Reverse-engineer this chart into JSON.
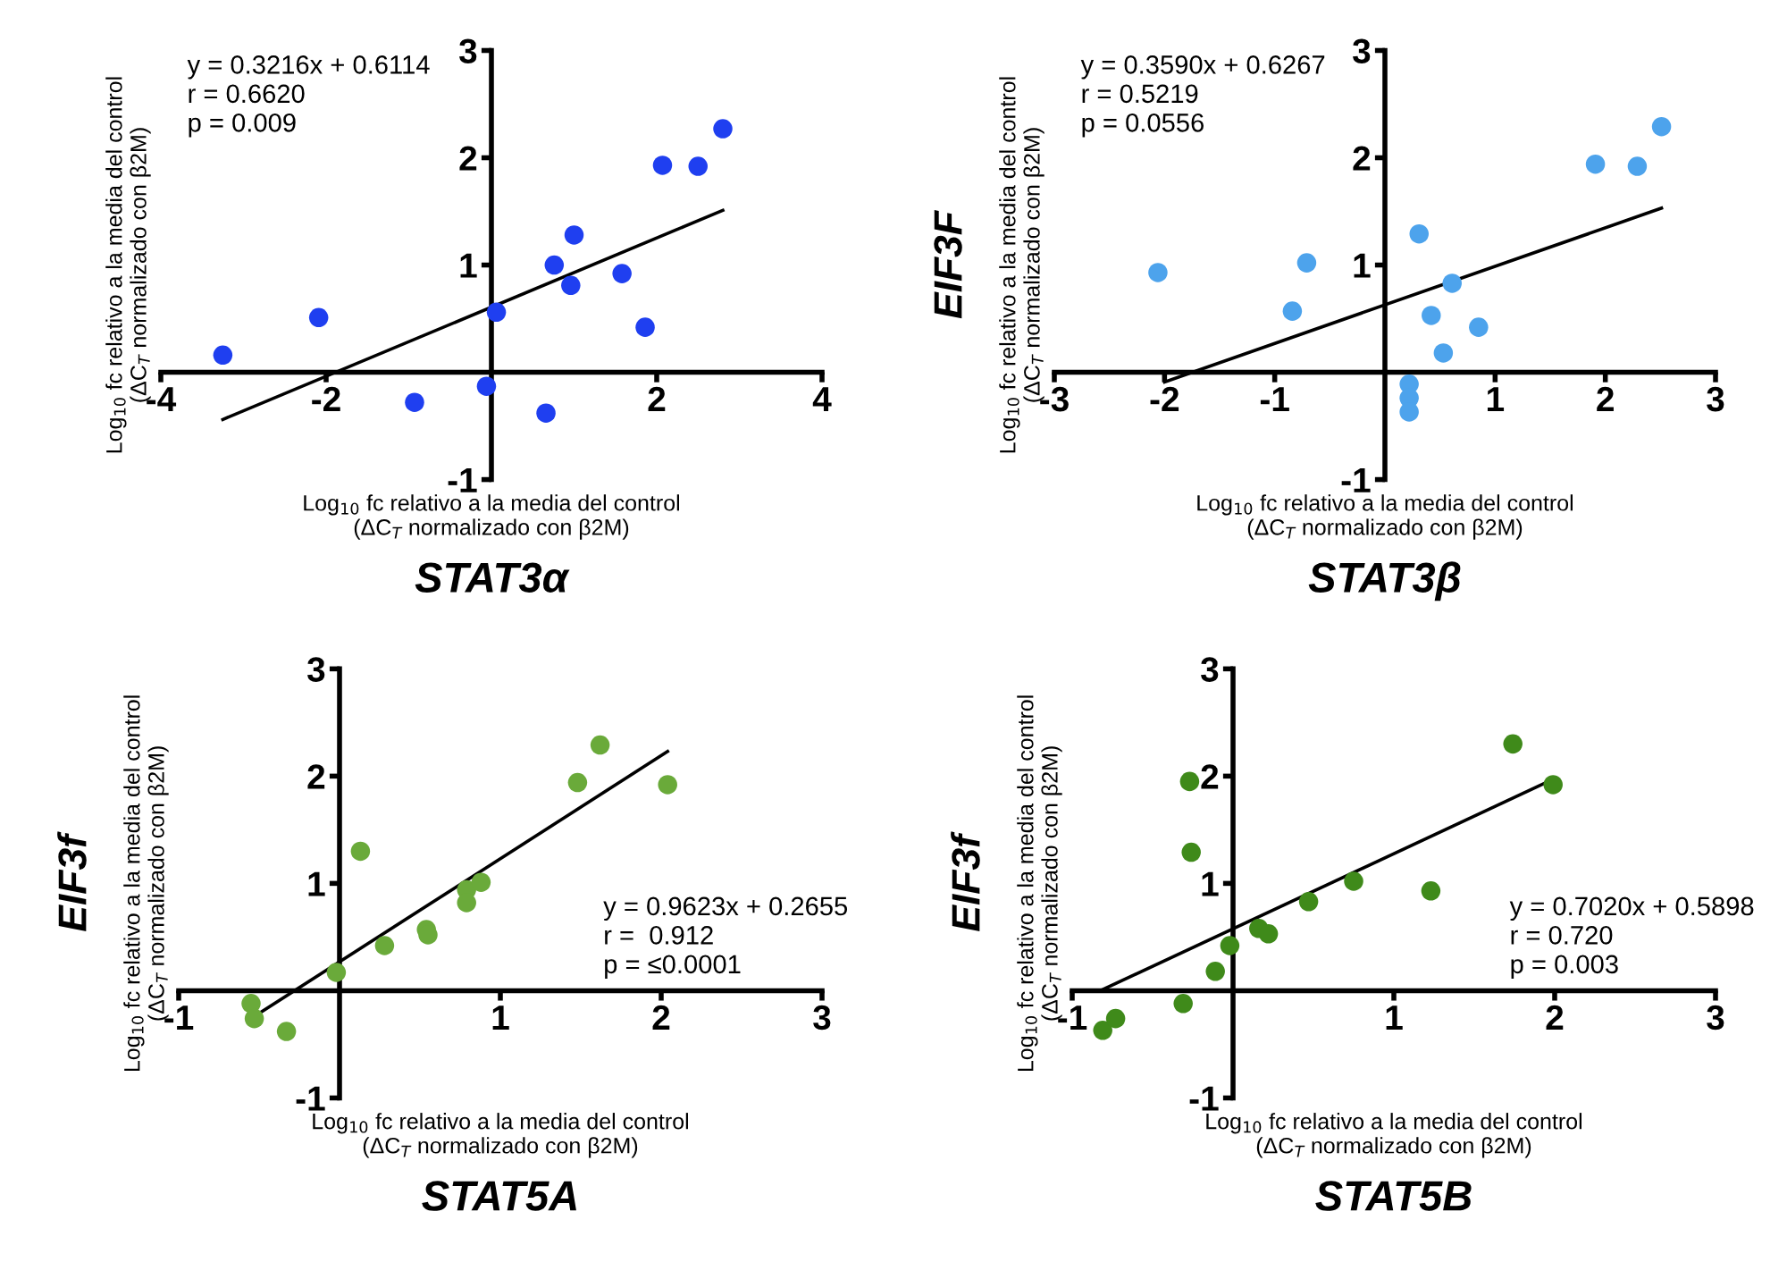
{
  "chart_data": [
    {
      "type": "scatter",
      "title": "STAT3α",
      "xlabel": "Log$_{10}$ fc relativo a la media del control\n(ΔC$_{T}$ normalizado con β2M)",
      "annotations": [
        "y = 0.3216x + 0.6114\nr = 0.6620\np = 0.009",
        "Log$_{10}$ fc relativo a la media del control\n(ΔC$_{T}$ normalizado con β2M)"
      ],
      "xlim": [
        -4,
        4
      ],
      "xticks": [
        -4,
        -2,
        2,
        4
      ],
      "ylim": [
        -1,
        3
      ],
      "yticks": [
        -1,
        1,
        2,
        3
      ],
      "grid": false,
      "series": [
        {
          "marker": "circle",
          "color": "#1f3ff0",
          "x": [
            -3.25,
            -2.09,
            -0.93,
            -0.06,
            0.06,
            0.66,
            0.76,
            0.96,
            1.0,
            1.58,
            1.86,
            2.07,
            2.5,
            2.8
          ],
          "values": [
            0.16,
            0.51,
            -0.28,
            -0.13,
            0.56,
            -0.38,
            1.0,
            0.81,
            1.28,
            0.92,
            0.42,
            1.93,
            1.92,
            2.27
          ]
        },
        {
          "type": "line",
          "color": "#000000",
          "x": [
            -3.25,
            2.8
          ],
          "values": [
            -0.44,
            1.51
          ]
        }
      ]
    },
    {
      "type": "scatter",
      "title": "STAT3β",
      "xlabel": "Log$_{10}$ fc relativo a la media del control\n(ΔC$_{T}$ normalizado con β2M)",
      "ylabel": "EIF3F",
      "annotations": [
        "y = 0.3590x + 0.6267\nr = 0.5219\np = 0.0556",
        "Log$_{10}$ fc relativo a la media del control\n(ΔC$_{T}$ normalizado con β2M)"
      ],
      "xlim": [
        -3,
        3
      ],
      "xticks": [
        -3,
        -2,
        -1,
        1,
        2,
        3
      ],
      "ylim": [
        -1,
        3
      ],
      "yticks": [
        -1,
        1,
        2,
        3
      ],
      "grid": false,
      "series": [
        {
          "marker": "circle",
          "color": "#4da3ec",
          "x": [
            -2.06,
            -0.71,
            -0.84,
            0.31,
            0.61,
            0.42,
            0.85,
            0.53,
            0.22,
            0.22,
            0.22,
            1.91,
            2.29,
            2.51
          ],
          "values": [
            0.93,
            1.02,
            0.57,
            1.29,
            0.83,
            0.53,
            0.42,
            0.18,
            -0.11,
            -0.24,
            -0.37,
            1.94,
            1.92,
            2.29
          ]
        },
        {
          "type": "line",
          "color": "#000000",
          "x": [
            -2.0,
            2.51
          ],
          "values": [
            -0.09,
            1.53
          ]
        }
      ]
    },
    {
      "type": "scatter",
      "title": "STAT5A",
      "xlabel": "Log$_{10}$ fc relativo a la media del control\n(ΔC$_{T}$ normalizado con β2M)",
      "ylabel": "EIF3f",
      "annotations": [
        "y = 0.9623x + 0.2655\nr =  0.912\np = ≤0.0001",
        "Log$_{10}$ fc relativo a la media del control\n(ΔC$_{T}$ normalizado con β2M)"
      ],
      "xlim": [
        -1,
        3
      ],
      "xticks": [
        -1,
        1,
        2,
        3
      ],
      "ylim": [
        -1,
        3
      ],
      "yticks": [
        -1,
        1,
        2,
        3
      ],
      "grid": false,
      "series": [
        {
          "marker": "circle",
          "color": "#6aaa3a",
          "x": [
            -0.55,
            -0.53,
            -0.33,
            -0.02,
            0.13,
            0.28,
            0.54,
            0.55,
            0.79,
            0.79,
            0.88,
            1.48,
            1.62,
            2.04
          ],
          "values": [
            -0.12,
            -0.26,
            -0.38,
            0.17,
            1.3,
            0.42,
            0.57,
            0.52,
            0.94,
            0.82,
            1.01,
            1.94,
            2.29,
            1.92
          ]
        },
        {
          "type": "line",
          "color": "#000000",
          "x": [
            -0.53,
            2.04
          ],
          "values": [
            -0.24,
            2.23
          ]
        }
      ]
    },
    {
      "type": "scatter",
      "title": "STAT5B",
      "xlabel": "Log$_{10}$ fc relativo a la media del control\n(ΔC$_{T}$ normalizado con β2M)",
      "ylabel": "EIF3f",
      "annotations": [
        "y = 0.7020x + 0.5898\nr = 0.720\np = 0.003",
        "Log$_{10}$ fc relativo a la media del control\n(ΔC$_{T}$ normalizado con β2M)"
      ],
      "xlim": [
        -1,
        3
      ],
      "xticks": [
        -1,
        1,
        2,
        3
      ],
      "ylim": [
        -1,
        3
      ],
      "yticks": [
        -1,
        1,
        2,
        3
      ],
      "grid": false,
      "series": [
        {
          "marker": "circle",
          "color": "#3f8a1a",
          "x": [
            -0.81,
            -0.73,
            -0.31,
            -0.27,
            -0.26,
            -0.11,
            -0.02,
            0.16,
            0.22,
            0.47,
            0.75,
            1.23,
            1.74,
            1.99
          ],
          "values": [
            -0.37,
            -0.26,
            -0.12,
            1.95,
            1.29,
            0.18,
            0.42,
            0.58,
            0.53,
            0.83,
            1.02,
            0.93,
            2.3,
            1.92
          ]
        },
        {
          "type": "line",
          "color": "#000000",
          "x": [
            -0.81,
            1.99
          ],
          "values": [
            0.01,
            1.97
          ]
        }
      ]
    }
  ]
}
